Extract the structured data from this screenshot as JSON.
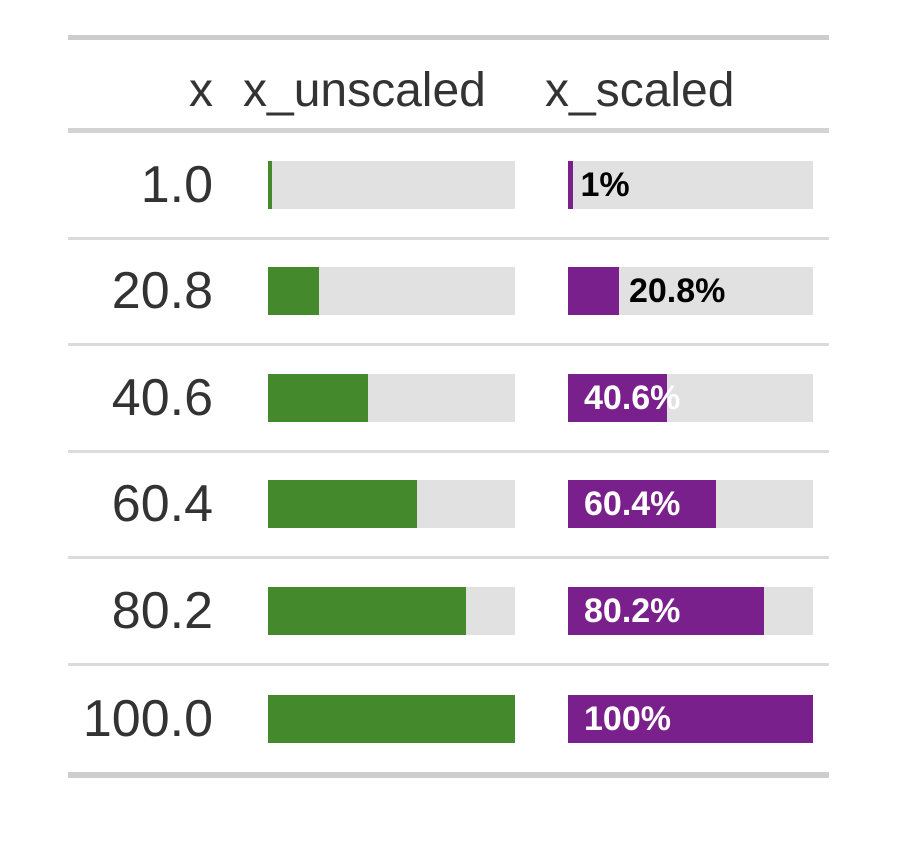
{
  "table": {
    "columns": [
      {
        "id": "x",
        "label": "x"
      },
      {
        "id": "x_unscaled",
        "label": "x_unscaled"
      },
      {
        "id": "x_scaled",
        "label": "x_scaled"
      }
    ],
    "rows": [
      {
        "x": "1.0",
        "pct": 1,
        "scaled_label": "1%",
        "label_inside": false
      },
      {
        "x": "20.8",
        "pct": 20.8,
        "scaled_label": "20.8%",
        "label_inside": false
      },
      {
        "x": "40.6",
        "pct": 40.6,
        "scaled_label": "40.6%",
        "label_inside": true
      },
      {
        "x": "60.4",
        "pct": 60.4,
        "scaled_label": "60.4%",
        "label_inside": true
      },
      {
        "x": "80.2",
        "pct": 80.2,
        "scaled_label": "80.2%",
        "label_inside": true
      },
      {
        "x": "100.0",
        "pct": 100,
        "scaled_label": "100%",
        "label_inside": true
      }
    ]
  },
  "colors": {
    "unscaled_fill": "#45892D",
    "scaled_fill": "#7A208C",
    "bar_track": "#E1E1E1",
    "label_outside": "#000000",
    "label_inside": "#FFFFFF",
    "text": "#333333",
    "border_heavy": "#CDCDCD",
    "border_header": "#D3D3D3",
    "border_light": "#DBDBDB"
  },
  "chart_data": {
    "type": "table",
    "title": "",
    "columns": [
      "x",
      "x_unscaled",
      "x_scaled"
    ],
    "x": [
      1.0,
      20.8,
      40.6,
      60.4,
      80.2,
      100.0
    ],
    "series": [
      {
        "name": "x_unscaled",
        "type": "bar",
        "values": [
          1.0,
          20.8,
          40.6,
          60.4,
          80.2,
          100.0
        ],
        "xlim": [
          0,
          100
        ],
        "color": "#45892D",
        "track_color": "#E1E1E1",
        "labels_shown": false
      },
      {
        "name": "x_scaled",
        "type": "bar",
        "values": [
          1.0,
          20.8,
          40.6,
          60.4,
          80.2,
          100.0
        ],
        "xlim": [
          0,
          100
        ],
        "color": "#7A208C",
        "track_color": "#E1E1E1",
        "labels_shown": true,
        "labels": [
          "1%",
          "20.8%",
          "40.6%",
          "60.4%",
          "80.2%",
          "100%"
        ]
      }
    ],
    "legend": "none",
    "grid": false
  }
}
